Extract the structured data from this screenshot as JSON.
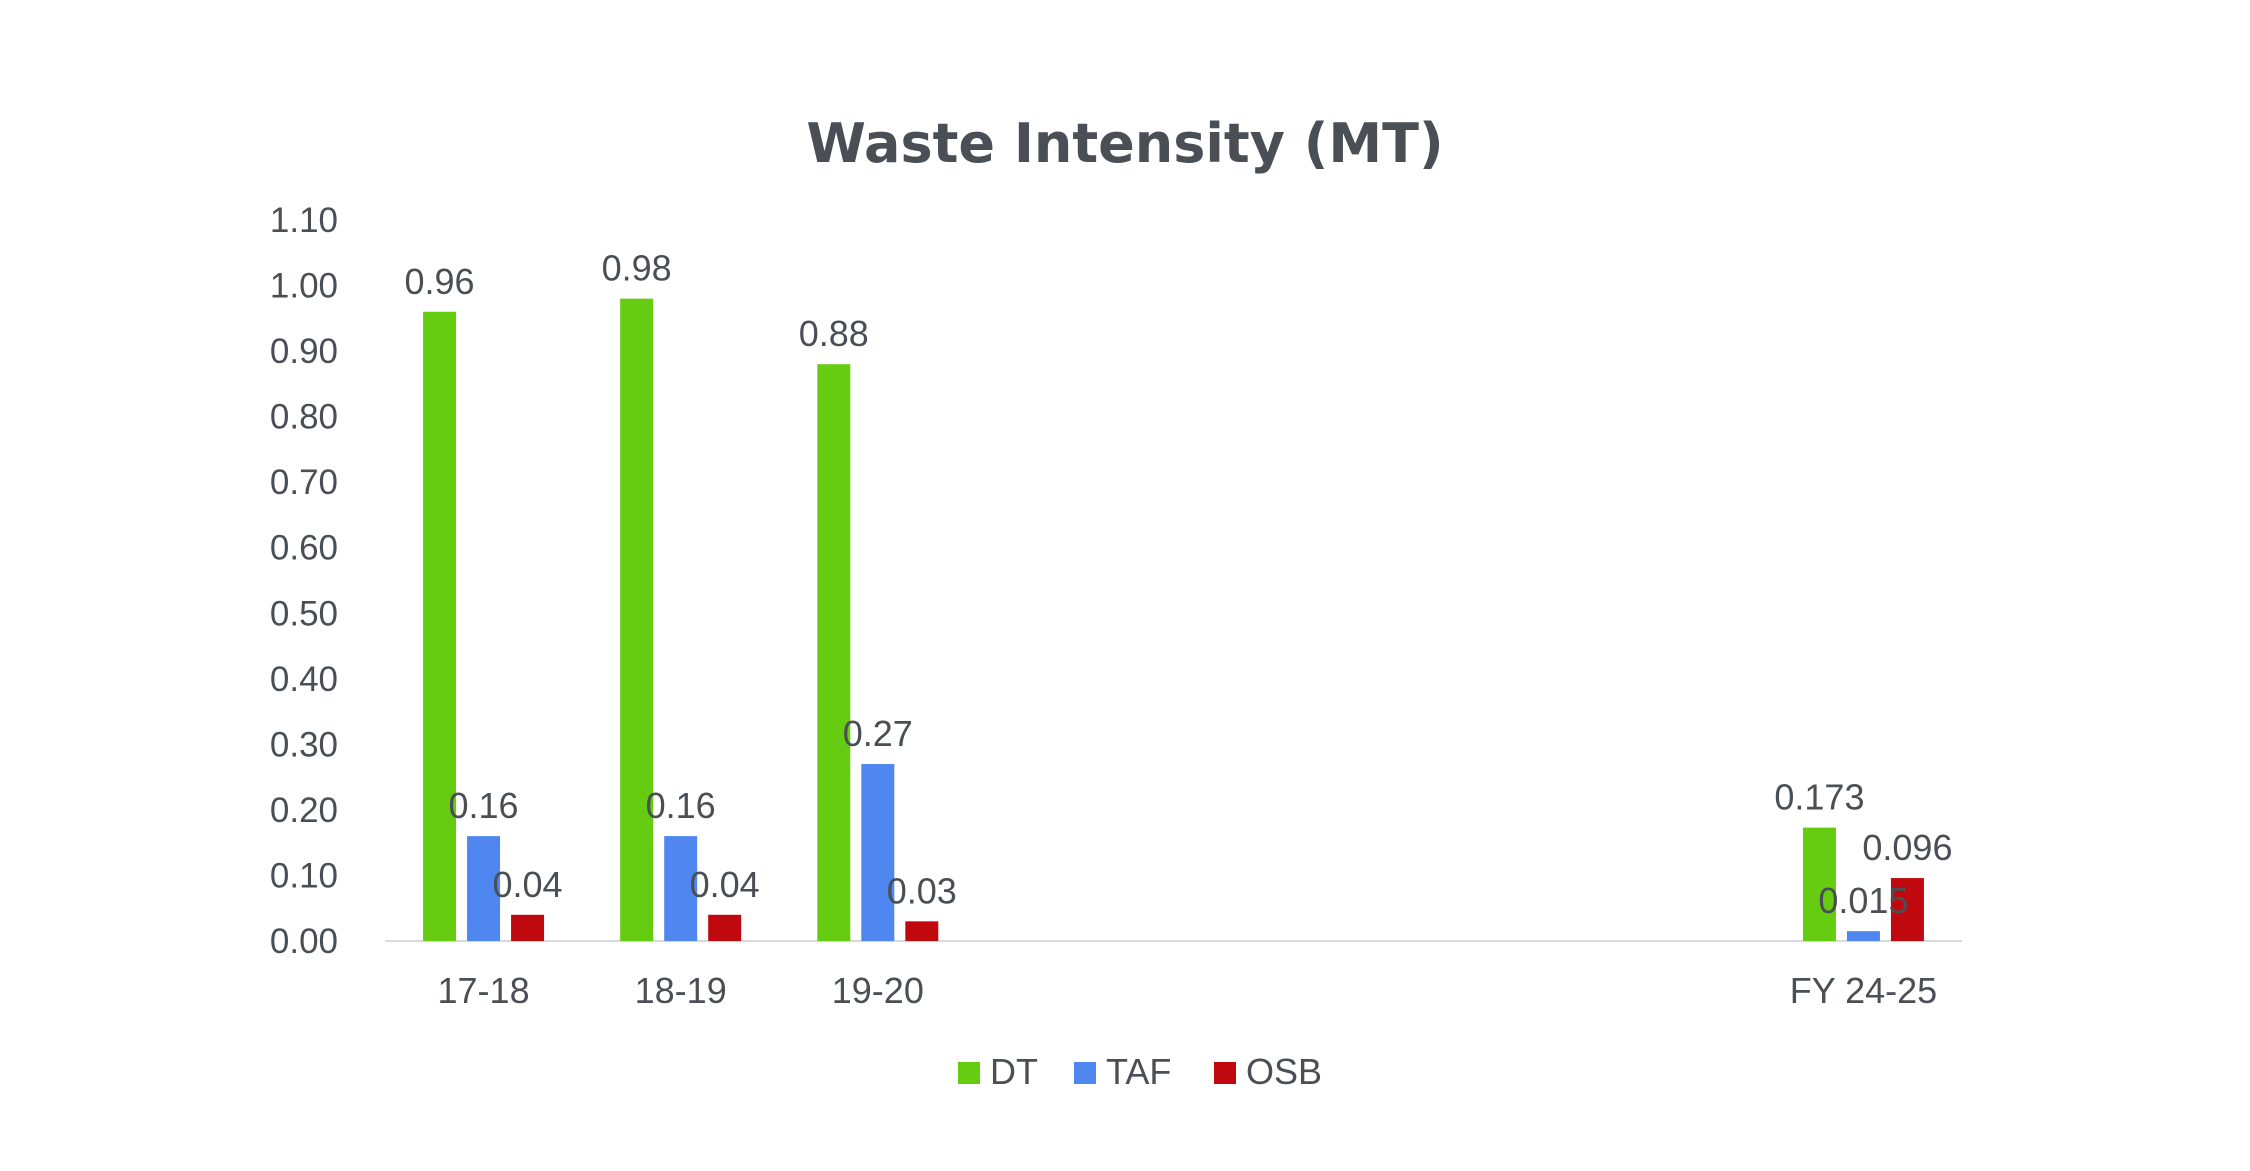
{
  "chart_data": {
    "type": "bar",
    "title": "Waste Intensity (MT)",
    "xlabel": "",
    "ylabel": "",
    "categories": [
      "17-18",
      "18-19",
      "19-20",
      "",
      "",
      "",
      "",
      "FY 24-25"
    ],
    "series": [
      {
        "name": "DT",
        "color": "#66cc11",
        "values": [
          0.96,
          0.98,
          0.88,
          null,
          null,
          null,
          null,
          0.173
        ],
        "labels": [
          "0.96",
          "0.98",
          "0.88",
          "",
          "",
          "",
          "",
          "0.173"
        ]
      },
      {
        "name": "TAF",
        "color": "#4f86f0",
        "values": [
          0.16,
          0.16,
          0.27,
          null,
          null,
          null,
          null,
          0.015
        ],
        "labels": [
          "0.16",
          "0.16",
          "0.27",
          "",
          "",
          "",
          "",
          "0.015"
        ]
      },
      {
        "name": "OSB",
        "color": "#c0080f",
        "values": [
          0.04,
          0.04,
          0.03,
          null,
          null,
          null,
          null,
          0.096
        ],
        "labels": [
          "0.04",
          "0.04",
          "0.03",
          "",
          "",
          "",
          "",
          "0.096"
        ]
      }
    ],
    "ylim": [
      0,
      1.1
    ],
    "yticks": [
      "0.00",
      "0.10",
      "0.20",
      "0.30",
      "0.40",
      "0.50",
      "0.60",
      "0.70",
      "0.80",
      "0.90",
      "1.00",
      "1.10"
    ],
    "grid": false,
    "legend": "bottom"
  }
}
